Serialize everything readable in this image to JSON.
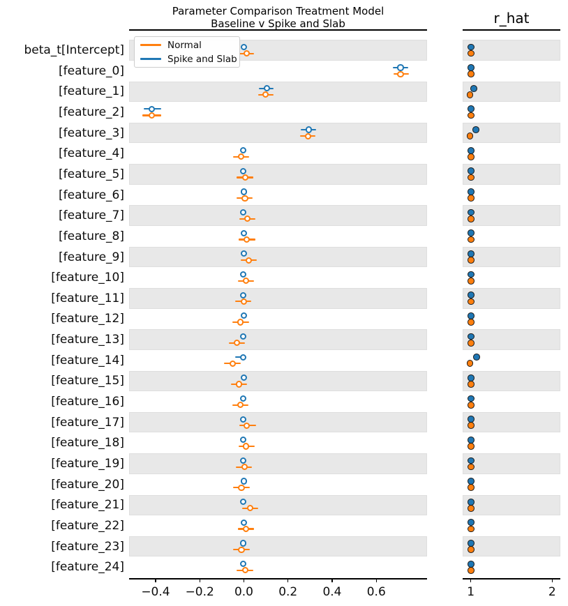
{
  "figure_title": {
    "line1": "Parameter Comparison Treatment Model",
    "line2": "Baseline v Spike and Slab"
  },
  "rhat_panel_title": "r_hat",
  "legend": {
    "items": [
      {
        "label": "Normal",
        "color": "#ff7f0e"
      },
      {
        "label": "Spike and Slab",
        "color": "#1f77b4"
      }
    ]
  },
  "colors": {
    "normal": "#ff7f0e",
    "spike_and_slab": "#1f77b4",
    "band_fill": "#e8e8e8",
    "axis": "#000000"
  },
  "chart_data": {
    "type": "forest",
    "title": "Parameter Comparison Treatment Model\nBaseline v Spike and Slab",
    "panels": [
      {
        "name": "estimates",
        "xlim": [
          -0.52,
          0.83
        ],
        "x_ticks": [
          {
            "v": -0.4,
            "label": "−0.4"
          },
          {
            "v": -0.2,
            "label": "−0.2"
          },
          {
            "v": 0.0,
            "label": "0.0"
          },
          {
            "v": 0.2,
            "label": "0.2"
          },
          {
            "v": 0.4,
            "label": "0.4"
          },
          {
            "v": 0.6,
            "label": "0.6"
          }
        ]
      },
      {
        "name": "r_hat",
        "xlim": [
          0.9,
          2.1
        ],
        "x_ticks": [
          {
            "v": 1,
            "label": "1"
          },
          {
            "v": 2,
            "label": "2"
          }
        ]
      }
    ],
    "series_names": [
      "Spike and Slab",
      "Normal"
    ],
    "grid": "alternating-row-bands",
    "legend_position": "upper-left",
    "rows": [
      {
        "label": "beta_t[Intercept]",
        "spike_and_slab": {
          "mean": 0.0,
          "lo": -0.005,
          "hi": 0.005,
          "r_hat": 1.0
        },
        "normal": {
          "mean": 0.013,
          "lo": -0.023,
          "hi": 0.045,
          "r_hat": 1.0
        }
      },
      {
        "label": "[feature_0]",
        "spike_and_slab": {
          "mean": 0.71,
          "lo": 0.675,
          "hi": 0.744,
          "r_hat": 1.0
        },
        "normal": {
          "mean": 0.71,
          "lo": 0.678,
          "hi": 0.747,
          "r_hat": 1.0
        }
      },
      {
        "label": "[feature_1]",
        "spike_and_slab": {
          "mean": 0.104,
          "lo": 0.068,
          "hi": 0.134,
          "r_hat": 1.04
        },
        "normal": {
          "mean": 0.099,
          "lo": 0.065,
          "hi": 0.133,
          "r_hat": 0.99
        }
      },
      {
        "label": "[feature_2]",
        "spike_and_slab": {
          "mean": -0.417,
          "lo": -0.455,
          "hi": -0.376,
          "r_hat": 1.0
        },
        "normal": {
          "mean": -0.418,
          "lo": -0.461,
          "hi": -0.376,
          "r_hat": 1.0
        }
      },
      {
        "label": "[feature_3]",
        "spike_and_slab": {
          "mean": 0.293,
          "lo": 0.259,
          "hi": 0.327,
          "r_hat": 1.06
        },
        "normal": {
          "mean": 0.29,
          "lo": 0.256,
          "hi": 0.325,
          "r_hat": 0.99
        }
      },
      {
        "label": "[feature_4]",
        "spike_and_slab": {
          "mean": -0.004,
          "lo": -0.004,
          "hi": -0.004,
          "r_hat": 1.0
        },
        "normal": {
          "mean": -0.012,
          "lo": -0.048,
          "hi": 0.025,
          "r_hat": 1.0
        }
      },
      {
        "label": "[feature_5]",
        "spike_and_slab": {
          "mean": -0.002,
          "lo": -0.002,
          "hi": -0.002,
          "r_hat": 1.0
        },
        "normal": {
          "mean": 0.007,
          "lo": -0.033,
          "hi": 0.043,
          "r_hat": 1.0
        }
      },
      {
        "label": "[feature_6]",
        "spike_and_slab": {
          "mean": 0.0,
          "lo": 0.0,
          "hi": 0.0,
          "r_hat": 1.0
        },
        "normal": {
          "mean": 0.005,
          "lo": -0.034,
          "hi": 0.041,
          "r_hat": 1.0
        }
      },
      {
        "label": "[feature_7]",
        "spike_and_slab": {
          "mean": -0.002,
          "lo": -0.002,
          "hi": -0.002,
          "r_hat": 1.0
        },
        "normal": {
          "mean": 0.017,
          "lo": -0.019,
          "hi": 0.052,
          "r_hat": 1.0
        }
      },
      {
        "label": "[feature_8]",
        "spike_and_slab": {
          "mean": -0.001,
          "lo": -0.001,
          "hi": -0.001,
          "r_hat": 1.0
        },
        "normal": {
          "mean": 0.013,
          "lo": -0.025,
          "hi": 0.051,
          "r_hat": 1.0
        }
      },
      {
        "label": "[feature_9]",
        "spike_and_slab": {
          "mean": -0.001,
          "lo": -0.001,
          "hi": -0.001,
          "r_hat": 1.0
        },
        "normal": {
          "mean": 0.022,
          "lo": -0.013,
          "hi": 0.059,
          "r_hat": 1.0
        }
      },
      {
        "label": "[feature_10]",
        "spike_and_slab": {
          "mean": -0.002,
          "lo": -0.002,
          "hi": -0.002,
          "r_hat": 1.0
        },
        "normal": {
          "mean": 0.009,
          "lo": -0.028,
          "hi": 0.047,
          "r_hat": 1.0
        }
      },
      {
        "label": "[feature_11]",
        "spike_and_slab": {
          "mean": -0.004,
          "lo": -0.004,
          "hi": -0.004,
          "r_hat": 1.0
        },
        "normal": {
          "mean": 0.0,
          "lo": -0.038,
          "hi": 0.033,
          "r_hat": 1.0
        }
      },
      {
        "label": "[feature_12]",
        "spike_and_slab": {
          "mean": -0.001,
          "lo": -0.001,
          "hi": -0.001,
          "r_hat": 1.0
        },
        "normal": {
          "mean": -0.015,
          "lo": -0.051,
          "hi": 0.023,
          "r_hat": 1.0
        }
      },
      {
        "label": "[feature_13]",
        "spike_and_slab": {
          "mean": -0.003,
          "lo": -0.003,
          "hi": -0.003,
          "r_hat": 1.0
        },
        "normal": {
          "mean": -0.032,
          "lo": -0.069,
          "hi": 0.004,
          "r_hat": 1.0
        }
      },
      {
        "label": "[feature_14]",
        "spike_and_slab": {
          "mean": -0.002,
          "lo": -0.04,
          "hi": 0.0,
          "r_hat": 1.07
        },
        "normal": {
          "mean": -0.051,
          "lo": -0.09,
          "hi": -0.014,
          "r_hat": 0.99
        }
      },
      {
        "label": "[feature_15]",
        "spike_and_slab": {
          "mean": -0.001,
          "lo": -0.001,
          "hi": -0.001,
          "r_hat": 1.0
        },
        "normal": {
          "mean": -0.021,
          "lo": -0.059,
          "hi": 0.015,
          "r_hat": 1.0
        }
      },
      {
        "label": "[feature_16]",
        "spike_and_slab": {
          "mean": -0.002,
          "lo": -0.002,
          "hi": -0.002,
          "r_hat": 1.0
        },
        "normal": {
          "mean": -0.016,
          "lo": -0.053,
          "hi": 0.02,
          "r_hat": 1.0
        }
      },
      {
        "label": "[feature_17]",
        "spike_and_slab": {
          "mean": -0.002,
          "lo": -0.002,
          "hi": -0.002,
          "r_hat": 1.0
        },
        "normal": {
          "mean": 0.014,
          "lo": -0.021,
          "hi": 0.054,
          "r_hat": 1.0
        }
      },
      {
        "label": "[feature_18]",
        "spike_and_slab": {
          "mean": -0.002,
          "lo": -0.002,
          "hi": -0.002,
          "r_hat": 1.0
        },
        "normal": {
          "mean": 0.01,
          "lo": -0.025,
          "hi": 0.049,
          "r_hat": 1.0
        }
      },
      {
        "label": "[feature_19]",
        "spike_and_slab": {
          "mean": -0.004,
          "lo": -0.004,
          "hi": -0.004,
          "r_hat": 1.0
        },
        "normal": {
          "mean": 0.002,
          "lo": -0.035,
          "hi": 0.038,
          "r_hat": 1.0
        }
      },
      {
        "label": "[feature_20]",
        "spike_and_slab": {
          "mean": -0.001,
          "lo": -0.001,
          "hi": -0.001,
          "r_hat": 1.0
        },
        "normal": {
          "mean": -0.011,
          "lo": -0.048,
          "hi": 0.028,
          "r_hat": 1.0
        }
      },
      {
        "label": "[feature_21]",
        "spike_and_slab": {
          "mean": -0.002,
          "lo": -0.002,
          "hi": -0.002,
          "r_hat": 1.0
        },
        "normal": {
          "mean": 0.028,
          "lo": -0.009,
          "hi": 0.065,
          "r_hat": 1.0
        }
      },
      {
        "label": "[feature_22]",
        "spike_and_slab": {
          "mean": -0.001,
          "lo": -0.001,
          "hi": -0.001,
          "r_hat": 1.0
        },
        "normal": {
          "mean": 0.01,
          "lo": -0.027,
          "hi": 0.047,
          "r_hat": 1.0
        }
      },
      {
        "label": "[feature_23]",
        "spike_and_slab": {
          "mean": -0.002,
          "lo": -0.002,
          "hi": -0.002,
          "r_hat": 1.0
        },
        "normal": {
          "mean": -0.011,
          "lo": -0.048,
          "hi": 0.028,
          "r_hat": 1.0
        }
      },
      {
        "label": "[feature_24]",
        "spike_and_slab": {
          "mean": -0.002,
          "lo": -0.002,
          "hi": -0.002,
          "r_hat": 1.0
        },
        "normal": {
          "mean": 0.007,
          "lo": -0.032,
          "hi": 0.042,
          "r_hat": 1.0
        }
      }
    ]
  }
}
